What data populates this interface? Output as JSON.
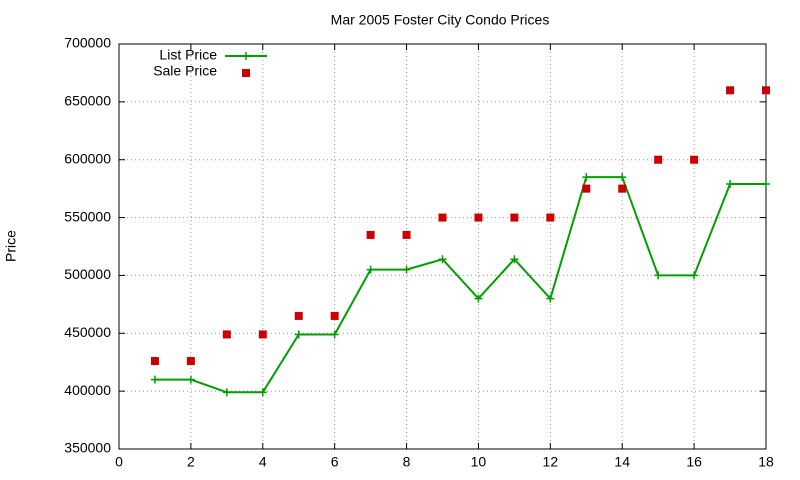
{
  "chart_data": {
    "type": "line",
    "title": "Mar 2005 Foster City Condo Prices",
    "y_label": "Price",
    "x": [
      1,
      2,
      3,
      4,
      5,
      6,
      7,
      8,
      9,
      10,
      11,
      12,
      13,
      14,
      15,
      16,
      17,
      18
    ],
    "series": [
      {
        "name": "List Price",
        "color": "#00a000",
        "style": "linespoints",
        "values": [
          410000,
          410000,
          399000,
          399000,
          449000,
          449000,
          505000,
          505000,
          514000,
          480000,
          514000,
          480000,
          585000,
          585000,
          500000,
          500000,
          579000,
          579000
        ]
      },
      {
        "name": "Sale Price",
        "color": "#cc0000",
        "style": "points",
        "values": [
          426000,
          426000,
          449000,
          449000,
          465000,
          465000,
          535000,
          535000,
          550000,
          550000,
          550000,
          550000,
          575000,
          575000,
          600000,
          600000,
          660000,
          660000
        ]
      }
    ],
    "xlim": [
      0,
      18
    ],
    "xticks": [
      0,
      2,
      4,
      6,
      8,
      10,
      12,
      14,
      16,
      18
    ],
    "ylim": [
      350000,
      700000
    ],
    "yticks": [
      350000,
      400000,
      450000,
      500000,
      550000,
      600000,
      650000,
      700000
    ],
    "grid": true,
    "legend": "top-left"
  }
}
